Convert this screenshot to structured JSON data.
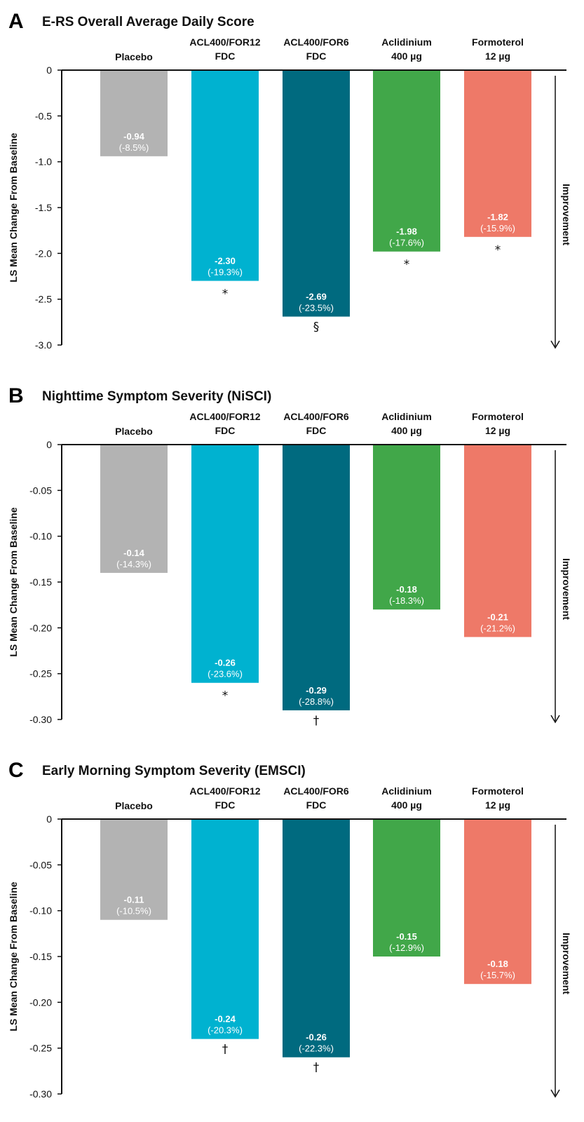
{
  "chart_data": [
    {
      "type": "bar",
      "panel": "A",
      "title": "E-RS Overall Average Daily Score",
      "ylabel": "LS Mean Change From Baseline",
      "ylim": [
        -3.0,
        0
      ],
      "yticks": [
        0,
        -0.5,
        -1.0,
        -1.5,
        -2.0,
        -2.5,
        -3.0
      ],
      "ytick_labels": [
        "0",
        "-0.5",
        "-1.0",
        "-1.5",
        "-2.0",
        "-2.5",
        "-3.0"
      ],
      "categories": [
        [
          "Placebo"
        ],
        [
          "ACL400/FOR12",
          "FDC"
        ],
        [
          "ACL400/FOR6",
          "FDC"
        ],
        [
          "Aclidinium",
          "400 µg"
        ],
        [
          "Formoterol",
          "12 µg"
        ]
      ],
      "values": [
        -0.94,
        -2.3,
        -2.69,
        -1.98,
        -1.82
      ],
      "value_labels": [
        "-0.94",
        "-2.30",
        "-2.69",
        "-1.98",
        "-1.82"
      ],
      "pct_labels": [
        "(-8.5%)",
        "(-19.3%)",
        "(-23.5%)",
        "(-17.6%)",
        "(-15.9%)"
      ],
      "markers": [
        "",
        "*",
        "§",
        "*",
        "*"
      ],
      "annotation": "Improvement"
    },
    {
      "type": "bar",
      "panel": "B",
      "title": "Nighttime Symptom Severity (NiSCI)",
      "ylabel": "LS Mean Change From Baseline",
      "ylim": [
        -0.3,
        0
      ],
      "yticks": [
        0,
        -0.05,
        -0.1,
        -0.15,
        -0.2,
        -0.25,
        -0.3
      ],
      "ytick_labels": [
        "0",
        "-0.05",
        "-0.10",
        "-0.15",
        "-0.20",
        "-0.25",
        "-0.30"
      ],
      "categories": [
        [
          "Placebo"
        ],
        [
          "ACL400/FOR12",
          "FDC"
        ],
        [
          "ACL400/FOR6",
          "FDC"
        ],
        [
          "Aclidinium",
          "400 µg"
        ],
        [
          "Formoterol",
          "12 µg"
        ]
      ],
      "values": [
        -0.14,
        -0.26,
        -0.29,
        -0.18,
        -0.21
      ],
      "value_labels": [
        "-0.14",
        "-0.26",
        "-0.29",
        "-0.18",
        "-0.21"
      ],
      "pct_labels": [
        "(-14.3%)",
        "(-23.6%)",
        "(-28.8%)",
        "(-18.3%)",
        "(-21.2%)"
      ],
      "markers": [
        "",
        "*",
        "†",
        "",
        ""
      ],
      "annotation": "Improvement"
    },
    {
      "type": "bar",
      "panel": "C",
      "title": "Early Morning Symptom Severity (EMSCI)",
      "ylabel": "LS Mean Change From Baseline",
      "ylim": [
        -0.3,
        0
      ],
      "yticks": [
        0,
        -0.05,
        -0.1,
        -0.15,
        -0.2,
        -0.25,
        -0.3
      ],
      "ytick_labels": [
        "0",
        "-0.05",
        "-0.10",
        "-0.15",
        "-0.20",
        "-0.25",
        "-0.30"
      ],
      "categories": [
        [
          "Placebo"
        ],
        [
          "ACL400/FOR12",
          "FDC"
        ],
        [
          "ACL400/FOR6",
          "FDC"
        ],
        [
          "Aclidinium",
          "400 µg"
        ],
        [
          "Formoterol",
          "12 µg"
        ]
      ],
      "values": [
        -0.11,
        -0.24,
        -0.26,
        -0.15,
        -0.18
      ],
      "value_labels": [
        "-0.11",
        "-0.24",
        "-0.26",
        "-0.15",
        "-0.18"
      ],
      "pct_labels": [
        "(-10.5%)",
        "(-20.3%)",
        "(-22.3%)",
        "(-12.9%)",
        "(-15.7%)"
      ],
      "markers": [
        "",
        "†",
        "†",
        "",
        ""
      ],
      "annotation": "Improvement"
    }
  ],
  "colors": {
    "placebo": "#b3b3b3",
    "acl400_for12": "#00b2d0",
    "acl400_for6": "#006a7f",
    "aclidinium": "#41a749",
    "formoterol": "#ee7968",
    "axis": "#111111",
    "value_text": "#ffffff"
  }
}
